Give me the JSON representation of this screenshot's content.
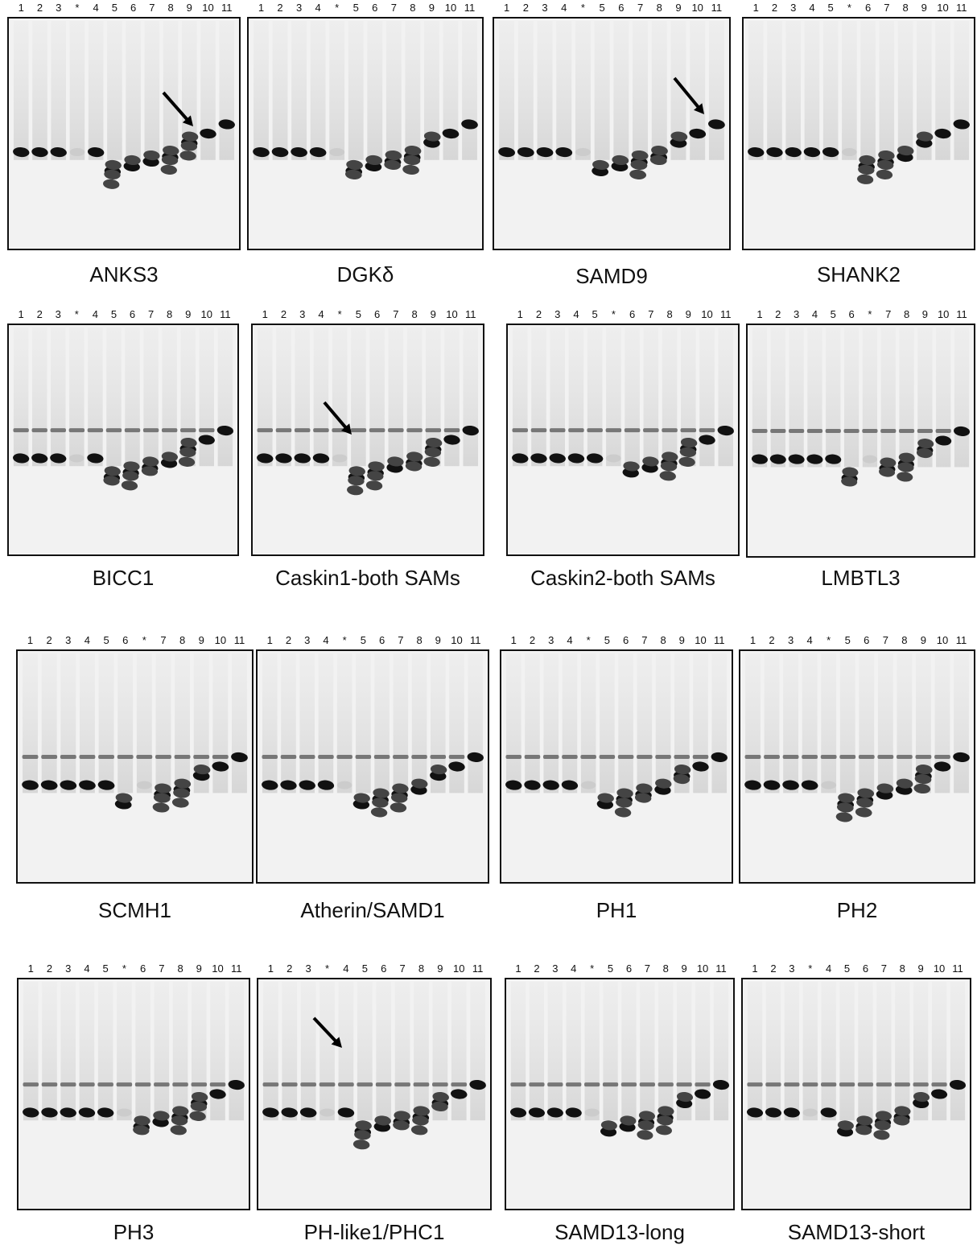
{
  "panels": [
    {
      "title": "ANKS3",
      "lanes": [
        "1",
        "2",
        "3",
        "*",
        "4",
        "5",
        "6",
        "7",
        "8",
        "9",
        "10",
        "11"
      ]
    },
    {
      "title": "DGKδ",
      "lanes": [
        "1",
        "2",
        "3",
        "4",
        "*",
        "5",
        "6",
        "7",
        "8",
        "9",
        "10",
        "11"
      ]
    },
    {
      "title": "SAMD9",
      "lanes": [
        "1",
        "2",
        "3",
        "4",
        "*",
        "5",
        "6",
        "7",
        "8",
        "9",
        "10",
        "11"
      ]
    },
    {
      "title": "SHANK2",
      "lanes": [
        "1",
        "2",
        "3",
        "4",
        "5",
        "*",
        "6",
        "7",
        "8",
        "9",
        "10",
        "11"
      ]
    },
    {
      "title": "BICC1",
      "lanes": [
        "1",
        "2",
        "3",
        "*",
        "4",
        "5",
        "6",
        "7",
        "8",
        "9",
        "10",
        "11"
      ]
    },
    {
      "title": "Caskin1-both SAMs",
      "lanes": [
        "1",
        "2",
        "3",
        "4",
        "*",
        "5",
        "6",
        "7",
        "8",
        "9",
        "10",
        "11"
      ]
    },
    {
      "title": "Caskin2-both SAMs",
      "lanes": [
        "1",
        "2",
        "3",
        "4",
        "5",
        "*",
        "6",
        "7",
        "8",
        "9",
        "10",
        "11"
      ]
    },
    {
      "title": "LMBTL3",
      "lanes": [
        "1",
        "2",
        "3",
        "4",
        "5",
        "6",
        "*",
        "7",
        "8",
        "9",
        "10",
        "11"
      ]
    },
    {
      "title": "SCMH1",
      "lanes": [
        "1",
        "2",
        "3",
        "4",
        "5",
        "6",
        "*",
        "7",
        "8",
        "9",
        "10",
        "11"
      ]
    },
    {
      "title": "Atherin/SAMD1",
      "lanes": [
        "1",
        "2",
        "3",
        "4",
        "*",
        "5",
        "6",
        "7",
        "8",
        "9",
        "10",
        "11"
      ]
    },
    {
      "title": "PH1",
      "lanes": [
        "1",
        "2",
        "3",
        "4",
        "*",
        "5",
        "6",
        "7",
        "8",
        "9",
        "10",
        "11"
      ]
    },
    {
      "title": "PH2",
      "lanes": [
        "1",
        "2",
        "3",
        "4",
        "*",
        "5",
        "6",
        "7",
        "8",
        "9",
        "10",
        "11"
      ]
    },
    {
      "title": "PH3",
      "lanes": [
        "1",
        "2",
        "3",
        "4",
        "5",
        "*",
        "6",
        "7",
        "8",
        "9",
        "10",
        "11"
      ]
    },
    {
      "title": "PH-like1/PHC1",
      "lanes": [
        "1",
        "2",
        "3",
        "*",
        "4",
        "5",
        "6",
        "7",
        "8",
        "9",
        "10",
        "11"
      ]
    },
    {
      "title": "SAMD13-long",
      "lanes": [
        "1",
        "2",
        "3",
        "4",
        "*",
        "5",
        "6",
        "7",
        "8",
        "9",
        "10",
        "11"
      ]
    },
    {
      "title": "SAMD13-short",
      "lanes": [
        "1",
        "2",
        "3",
        "*",
        "4",
        "5",
        "6",
        "7",
        "8",
        "9",
        "10",
        "11"
      ]
    }
  ]
}
